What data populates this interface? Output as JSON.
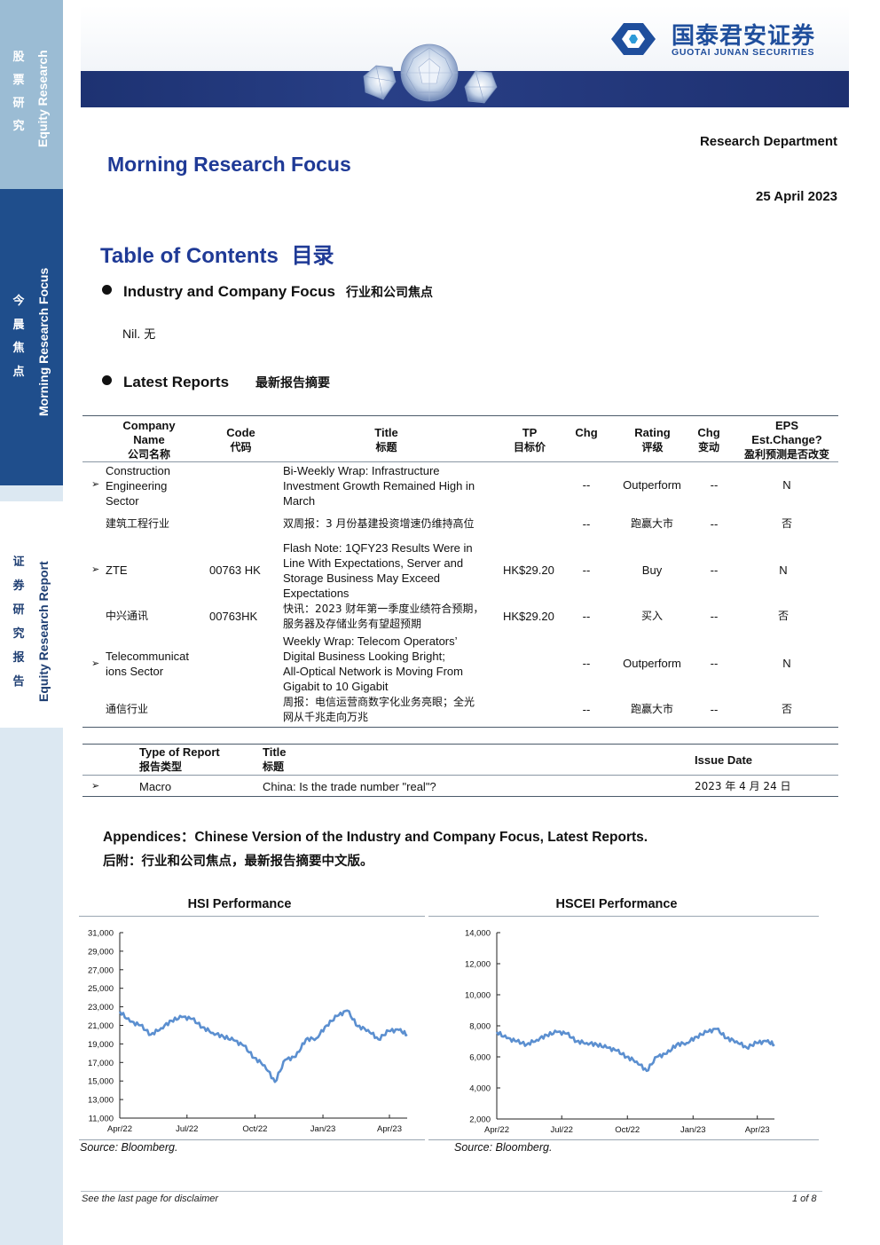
{
  "sidebar": {
    "block1": {
      "cn": [
        "股",
        "票",
        "研",
        "究"
      ],
      "en": "Equity Research"
    },
    "block2": {
      "cn": [
        "今",
        "晨",
        "焦",
        "点"
      ],
      "en": "Morning Research Focus"
    },
    "block3": {
      "cn": [
        "证",
        "券",
        "研",
        "究",
        "报",
        "告"
      ],
      "en": "Equity Research Report"
    }
  },
  "brand": {
    "name_cn": "国泰君安证券",
    "name_en": "GUOTAI JUNAN SECURITIES",
    "color": "#1f4e9c"
  },
  "header": {
    "department": "Research Department",
    "title": "Morning Research Focus",
    "date": "25 April 2023"
  },
  "toc": {
    "title": "Table of Contents",
    "title_cn": "目录",
    "section1": {
      "label": "Industry and Company Focus",
      "label_cn": "行业和公司焦点"
    },
    "nil": "Nil.",
    "nil_cn": "无",
    "section2": {
      "label": "Latest Reports",
      "label_cn": "最新报告摘要"
    }
  },
  "reports_table": {
    "headers": {
      "company": [
        "Company",
        "Name",
        "公司名称"
      ],
      "code": [
        "Code",
        "代码"
      ],
      "title": [
        "Title",
        "标题"
      ],
      "tp": [
        "TP",
        "目标价"
      ],
      "chg": [
        "Chg"
      ],
      "rating": [
        "Rating",
        "评级"
      ],
      "chg2": [
        "Chg",
        "变动"
      ],
      "eps": [
        "EPS",
        "Est.Change?",
        "盈利预测是否改变"
      ]
    },
    "rows": [
      {
        "marker": "➢",
        "company": [
          "Construction",
          "Engineering",
          "Sector"
        ],
        "code": "",
        "title": [
          "Bi-Weekly Wrap: Infrastructure",
          "Investment Growth Remained High in",
          "March"
        ],
        "tp": "",
        "chg": "--",
        "rating": "Outperform",
        "chg2": "--",
        "eps": "N"
      },
      {
        "marker": "",
        "company": [
          "建筑工程行业"
        ],
        "code": "",
        "title": [
          "双周报：3 月份基建投资增速仍维持高位"
        ],
        "tp": "",
        "chg": "--",
        "rating": "跑赢大市",
        "chg2": "--",
        "eps": "否"
      },
      {
        "marker": "➢",
        "company": [
          "ZTE"
        ],
        "code": "00763 HK",
        "title": [
          "Flash Note: 1QFY23 Results Were in",
          "Line With Expectations, Server and",
          "Storage Business May Exceed",
          "Expectations"
        ],
        "tp": "HK$29.20",
        "chg": "--",
        "rating": "Buy",
        "chg2": "--",
        "eps": "N"
      },
      {
        "marker": "",
        "company": [
          "中兴通讯"
        ],
        "code": "00763HK",
        "title": [
          "快讯：2023 财年第一季度业绩符合预期，",
          "服务器及存储业务有望超预期"
        ],
        "tp": "HK$29.20",
        "chg": "--",
        "rating": "买入",
        "chg2": "--",
        "eps": "否"
      },
      {
        "marker": "➢",
        "company": [
          "Telecommunicat",
          "ions Sector"
        ],
        "code": "",
        "title": [
          "Weekly Wrap: Telecom Operators’",
          "Digital Business Looking Bright;",
          "All-Optical Network is Moving From",
          "Gigabit to 10 Gigabit"
        ],
        "tp": "",
        "chg": "--",
        "rating": "Outperform",
        "chg2": "--",
        "eps": "N"
      },
      {
        "marker": "",
        "company": [
          "通信行业"
        ],
        "code": "",
        "title": [
          "周报：电信运营商数字化业务亮眼；全光",
          "网从千兆走向万兆"
        ],
        "tp": "",
        "chg": "--",
        "rating": "跑赢大市",
        "chg2": "--",
        "eps": "否"
      }
    ]
  },
  "macro_table": {
    "headers": {
      "type": [
        "Type of Report",
        "报告类型"
      ],
      "title": [
        "Title",
        "标题"
      ],
      "date": [
        "Issue Date"
      ]
    },
    "rows": [
      {
        "marker": "➢",
        "type": "Macro",
        "title": "China: Is the trade number \"real\"?",
        "date": "2023 年 4 月 24 日"
      }
    ]
  },
  "appendices": {
    "en": "Appendices：Chinese Version of the Industry and Company Focus, Latest Reports.",
    "cn": "后附：行业和公司焦点，最新报告摘要中文版。"
  },
  "chart_data": [
    {
      "type": "line",
      "title": "HSI Performance",
      "xlabel": "",
      "ylabel": "",
      "x_ticks": [
        "Apr/22",
        "Jul/22",
        "Oct/22",
        "Jan/23",
        "Apr/23"
      ],
      "y_ticks": [
        "31,000",
        "29,000",
        "27,000",
        "25,000",
        "23,000",
        "21,000",
        "19,000",
        "17,000",
        "15,000",
        "13,000",
        "11,000"
      ],
      "ylim": [
        11000,
        31000
      ],
      "x_range": [
        "2022-04-01",
        "2023-04-25"
      ],
      "color": "#5b8fd0",
      "series": [
        {
          "x": [
            "2022-04-01",
            "2022-04-15",
            "2022-04-29",
            "2022-05-13",
            "2022-05-27",
            "2022-06-10",
            "2022-06-24",
            "2022-07-08",
            "2022-07-22",
            "2022-08-05",
            "2022-08-19",
            "2022-09-02",
            "2022-09-16",
            "2022-09-30",
            "2022-10-14",
            "2022-10-28",
            "2022-11-11",
            "2022-11-25",
            "2022-12-09",
            "2022-12-23",
            "2023-01-06",
            "2023-01-20",
            "2023-02-03",
            "2023-02-17",
            "2023-03-03",
            "2023-03-17",
            "2023-03-31",
            "2023-04-14",
            "2023-04-25"
          ],
          "y": [
            22500,
            21400,
            21000,
            20000,
            20700,
            21500,
            21900,
            21700,
            20800,
            20200,
            19800,
            19400,
            18800,
            17500,
            16700,
            14900,
            17300,
            17600,
            19500,
            19600,
            21000,
            22000,
            22600,
            20900,
            20500,
            19500,
            20400,
            20500,
            20000
          ]
        }
      ]
    },
    {
      "type": "line",
      "title": "HSCEI Performance",
      "xlabel": "",
      "ylabel": "",
      "x_ticks": [
        "Apr/22",
        "Jul/22",
        "Oct/22",
        "Jan/23",
        "Apr/23"
      ],
      "y_ticks": [
        "14,000",
        "12,000",
        "10,000",
        "8,000",
        "6,000",
        "4,000",
        "2,000"
      ],
      "ylim": [
        2000,
        14000
      ],
      "x_range": [
        "2022-04-01",
        "2023-04-25"
      ],
      "color": "#5b8fd0",
      "series": [
        {
          "x": [
            "2022-04-01",
            "2022-04-15",
            "2022-04-29",
            "2022-05-13",
            "2022-05-27",
            "2022-06-10",
            "2022-06-24",
            "2022-07-08",
            "2022-07-22",
            "2022-08-05",
            "2022-08-19",
            "2022-09-02",
            "2022-09-16",
            "2022-09-30",
            "2022-10-14",
            "2022-10-28",
            "2022-11-11",
            "2022-11-25",
            "2022-12-09",
            "2022-12-23",
            "2023-01-06",
            "2023-01-20",
            "2023-02-03",
            "2023-02-17",
            "2023-03-03",
            "2023-03-17",
            "2023-03-31",
            "2023-04-14",
            "2023-04-25"
          ],
          "y": [
            7600,
            7200,
            7000,
            6800,
            7100,
            7400,
            7600,
            7500,
            7000,
            6900,
            6800,
            6600,
            6400,
            6000,
            5700,
            5100,
            6000,
            6200,
            6800,
            6900,
            7300,
            7600,
            7800,
            7200,
            7000,
            6600,
            6900,
            7000,
            6800
          ]
        }
      ]
    }
  ],
  "sources": {
    "left": "Source: Bloomberg.",
    "right": "Source: Bloomberg."
  },
  "footer": {
    "disclaimer": "See  the last page for disclaimer",
    "page": "1 of 8"
  }
}
